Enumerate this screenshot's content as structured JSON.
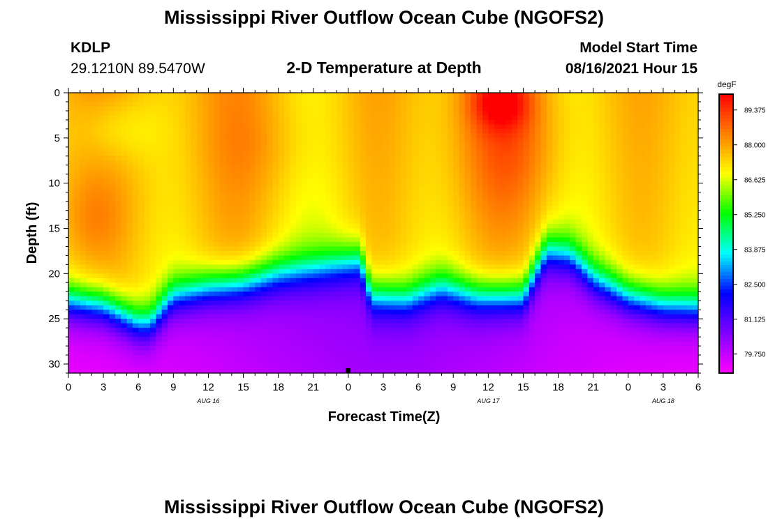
{
  "header": {
    "title": "Mississippi River Outflow Ocean Cube (NGOFS2)",
    "station_id": "KDLP",
    "coords": "29.1210N  89.5470W",
    "subtitle": "2-D Temperature at Depth",
    "model_label": "Model Start Time",
    "model_time": "08/16/2021 Hour 15"
  },
  "footer": {
    "title": "Mississippi River Outflow Ocean Cube (NGOFS2)"
  },
  "chart_data": {
    "type": "heatmap",
    "title": "2-D Temperature at Depth",
    "xlabel": "Forecast Time(Z)",
    "ylabel": "Depth (ft)",
    "x_hours_range": [
      0,
      54
    ],
    "x_tick_labels": [
      "0",
      "3",
      "6",
      "9",
      "12",
      "15",
      "18",
      "21",
      "0",
      "3",
      "6",
      "9",
      "12",
      "15",
      "18",
      "21",
      "0",
      "3",
      "6"
    ],
    "date_labels": [
      {
        "hour": 12,
        "text": "AUG 16"
      },
      {
        "hour": 36,
        "text": "AUG 17"
      },
      {
        "hour": 51,
        "text": "AUG 18"
      }
    ],
    "y_range": [
      0,
      31
    ],
    "y_ticks": [
      0,
      5,
      10,
      15,
      20,
      25,
      30
    ],
    "colorbar": {
      "unit": "degF",
      "range": [
        79.0,
        90.0
      ],
      "tick_values": [
        89.375,
        88.0,
        86.625,
        85.25,
        83.875,
        82.5,
        81.125,
        79.75
      ],
      "tick_labels": [
        "89.375",
        "88.000",
        "86.625",
        "85.250",
        "83.875",
        "82.500",
        "81.125",
        "79.750"
      ],
      "colors": [
        "#ff00ff",
        "#8000ff",
        "#0000ff",
        "#00ffff",
        "#00ff00",
        "#ffff00",
        "#ff8000",
        "#ff0000"
      ]
    },
    "thermocline_depth_ft": [
      {
        "hour": 0,
        "depth": 23
      },
      {
        "hour": 3,
        "depth": 23.5
      },
      {
        "hour": 6,
        "depth": 25.5
      },
      {
        "hour": 7,
        "depth": 25.5
      },
      {
        "hour": 9,
        "depth": 22.5
      },
      {
        "hour": 12,
        "depth": 21.5
      },
      {
        "hour": 15,
        "depth": 21
      },
      {
        "hour": 18,
        "depth": 20
      },
      {
        "hour": 21,
        "depth": 19.5
      },
      {
        "hour": 23,
        "depth": 19
      },
      {
        "hour": 25,
        "depth": 18.5
      },
      {
        "hour": 26,
        "depth": 22.5
      },
      {
        "hour": 29,
        "depth": 22.8
      },
      {
        "hour": 32,
        "depth": 21.5
      },
      {
        "hour": 35,
        "depth": 22.5
      },
      {
        "hour": 39,
        "depth": 22.5
      },
      {
        "hour": 41,
        "depth": 17.5
      },
      {
        "hour": 43,
        "depth": 18
      },
      {
        "hour": 45,
        "depth": 20.5
      },
      {
        "hour": 48,
        "depth": 22.5
      },
      {
        "hour": 51,
        "depth": 23.5
      },
      {
        "hour": 54,
        "depth": 23.8
      }
    ],
    "surface_hotspot": {
      "hour": 37,
      "depth": 1,
      "max_temp_f": 89.8
    }
  }
}
